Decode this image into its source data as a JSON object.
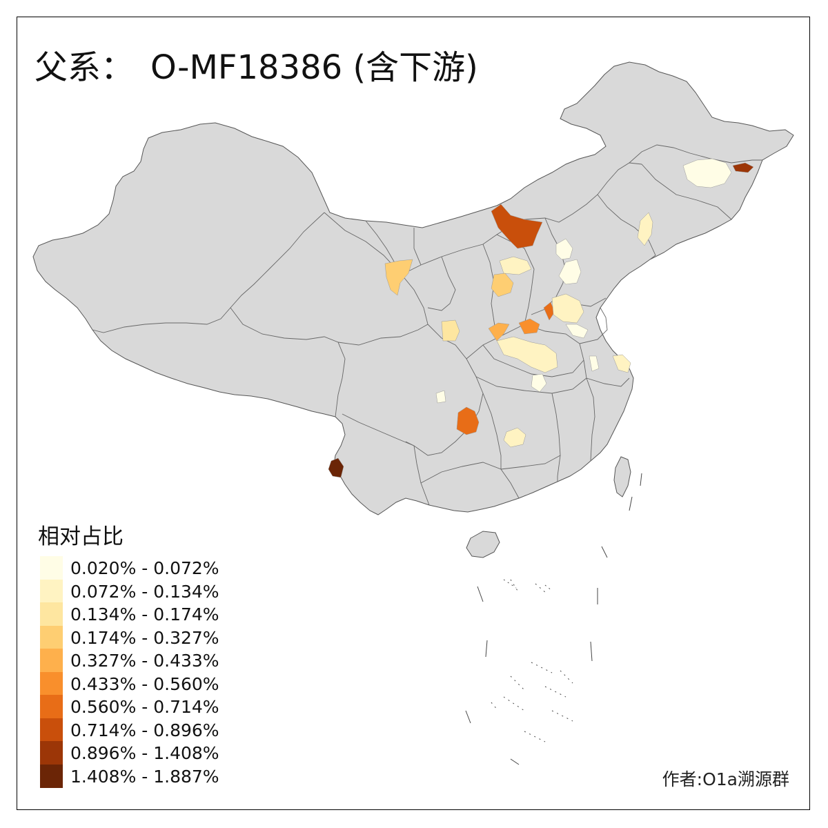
{
  "title": {
    "prefix": "父系：",
    "main": "O-MF18386 (含下游)"
  },
  "legend": {
    "title": "相对占比",
    "classes": [
      {
        "label": "0.020% - 0.072%",
        "color": "#fffde6"
      },
      {
        "label": "0.072% - 0.134%",
        "color": "#fff3c2"
      },
      {
        "label": "0.134% - 0.174%",
        "color": "#fee6a0"
      },
      {
        "label": "0.174% - 0.327%",
        "color": "#fece72"
      },
      {
        "label": "0.327% - 0.433%",
        "color": "#feb04c"
      },
      {
        "label": "0.433% - 0.560%",
        "color": "#f98f2c"
      },
      {
        "label": "0.560% - 0.714%",
        "color": "#e86d17"
      },
      {
        "label": "0.714% - 0.896%",
        "color": "#c94f0b"
      },
      {
        "label": "0.896% - 1.408%",
        "color": "#9c3607"
      },
      {
        "label": "1.408% - 1.887%",
        "color": "#6b2506"
      }
    ]
  },
  "credit": "作者:O1a溯源群",
  "map": {
    "base_color": "#d9d9d9",
    "border_color": "#555555"
  }
}
